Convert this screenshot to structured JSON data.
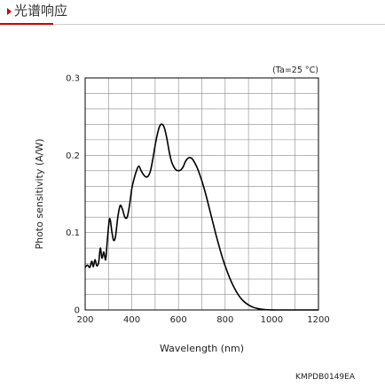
{
  "header": {
    "title": "光谱响应",
    "accent_color": "#cc0000"
  },
  "chart_data": {
    "type": "line",
    "xlabel": "Wavelength (nm)",
    "ylabel": "Photo sensitivity (A/W)",
    "xlim": [
      200,
      1200
    ],
    "ylim": [
      0,
      0.3
    ],
    "x_ticks": [
      "200",
      "400",
      "600",
      "800",
      "1000",
      "1200"
    ],
    "y_ticks": [
      "0",
      "0.1",
      "0.2",
      "0.3"
    ],
    "grid": true,
    "annotation": "(Ta=25 °C)",
    "figure_code": "KMPDB0149EA",
    "series": [
      {
        "x": [
          200,
          210,
          220,
          228,
          235,
          242,
          250,
          258,
          265,
          272,
          280,
          288,
          295,
          305,
          315,
          322,
          330,
          340,
          350,
          360,
          370,
          380,
          390,
          400,
          410,
          420,
          430,
          440,
          450,
          460,
          470,
          480,
          490,
          500,
          510,
          520,
          530,
          540,
          550,
          560,
          570,
          580,
          590,
          600,
          610,
          620,
          630,
          640,
          650,
          660,
          670,
          680,
          690,
          700,
          710,
          720,
          730,
          740,
          750,
          760,
          770,
          780,
          790,
          800,
          820,
          840,
          860,
          880,
          900,
          920,
          940,
          960,
          980,
          1000,
          1020,
          1040,
          1060,
          1080,
          1100,
          1120,
          1140,
          1160,
          1180,
          1200
        ],
        "values": [
          0.055,
          0.058,
          0.055,
          0.063,
          0.056,
          0.065,
          0.057,
          0.062,
          0.08,
          0.067,
          0.075,
          0.065,
          0.09,
          0.118,
          0.1,
          0.09,
          0.095,
          0.12,
          0.135,
          0.13,
          0.12,
          0.12,
          0.135,
          0.157,
          0.17,
          0.18,
          0.186,
          0.18,
          0.175,
          0.172,
          0.173,
          0.18,
          0.195,
          0.213,
          0.228,
          0.238,
          0.24,
          0.235,
          0.222,
          0.205,
          0.192,
          0.185,
          0.181,
          0.18,
          0.181,
          0.185,
          0.192,
          0.196,
          0.197,
          0.195,
          0.19,
          0.184,
          0.176,
          0.167,
          0.157,
          0.146,
          0.134,
          0.122,
          0.11,
          0.098,
          0.087,
          0.076,
          0.066,
          0.057,
          0.041,
          0.028,
          0.018,
          0.011,
          0.0065,
          0.0035,
          0.0018,
          0.0008,
          0.0003,
          0.0001,
          0,
          0,
          0,
          0,
          0,
          0,
          0,
          0,
          0,
          0
        ]
      }
    ],
    "line_color": "#000000"
  }
}
